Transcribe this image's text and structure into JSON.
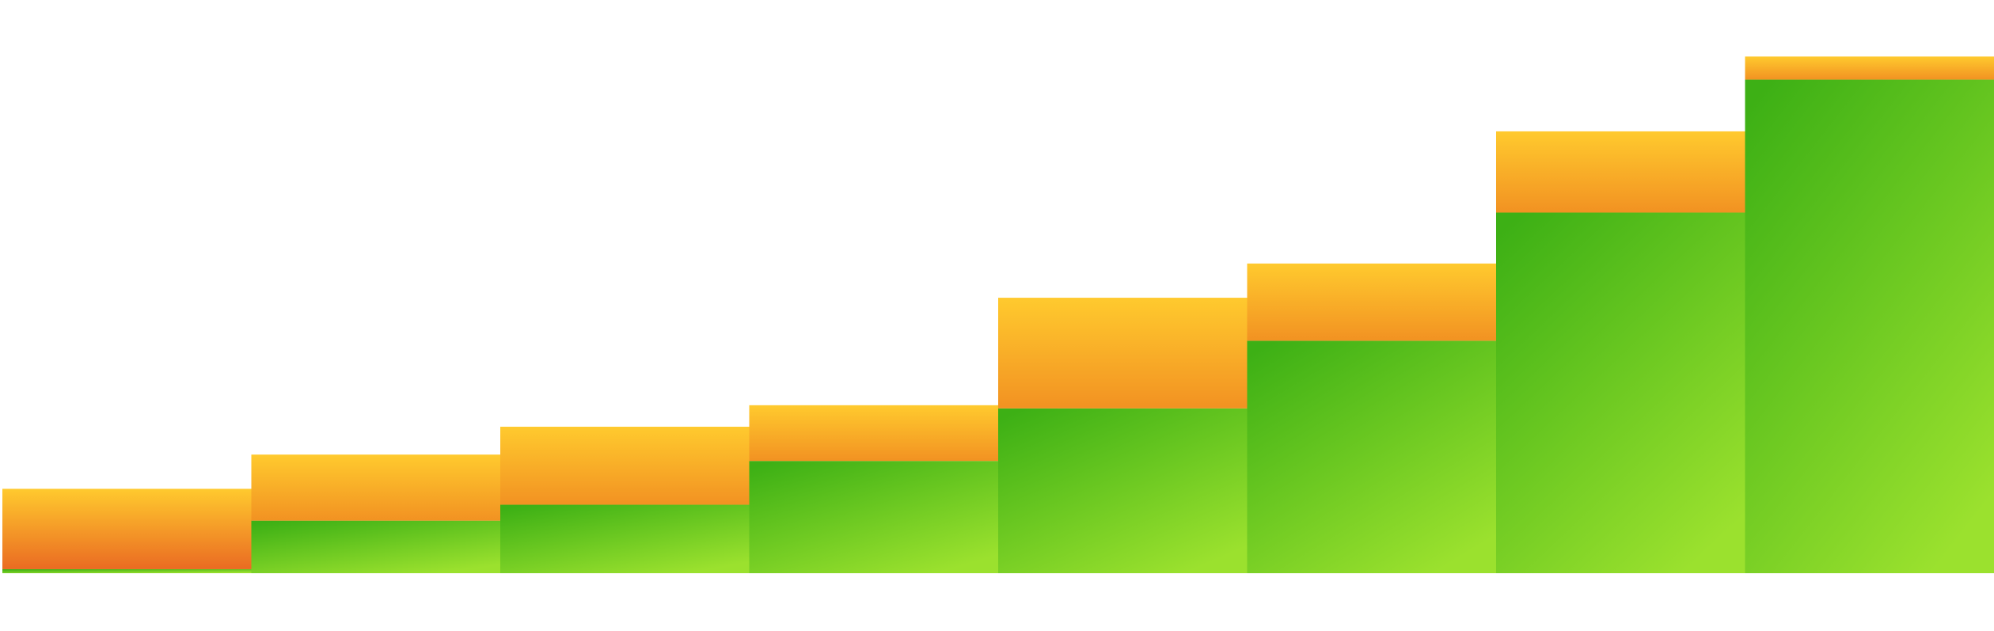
{
  "chart_data": {
    "type": "bar",
    "stacked": true,
    "categories": [
      "",
      "",
      "",
      "",
      "",
      "",
      "",
      ""
    ],
    "series": [
      {
        "values": [
          0.5,
          6.6,
          8.6,
          14.1,
          20.7,
          29.2,
          45.3,
          62.0
        ]
      },
      {
        "values": [
          10.1,
          8.3,
          9.8,
          7.0,
          13.9,
          9.7,
          10.2,
          2.9
        ]
      }
    ],
    "ylim": [
      0,
      72
    ],
    "grid": false,
    "legend": "none",
    "colors": {
      "base_dark": "#3db015",
      "base_light": "#9be12e",
      "top_light": "#ffca2e",
      "top_dark": "#f29222",
      "first_top_dark": "#ea6b22"
    }
  }
}
